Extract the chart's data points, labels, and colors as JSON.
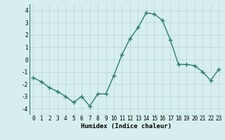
{
  "x": [
    0,
    1,
    2,
    3,
    4,
    5,
    6,
    7,
    8,
    9,
    10,
    11,
    12,
    13,
    14,
    15,
    16,
    17,
    18,
    19,
    20,
    21,
    22,
    23
  ],
  "y": [
    -1.5,
    -1.8,
    -2.3,
    -2.6,
    -3.0,
    -3.5,
    -3.0,
    -3.8,
    -2.8,
    -2.8,
    -1.3,
    0.4,
    1.7,
    2.6,
    3.8,
    3.7,
    3.2,
    1.6,
    -0.4,
    -0.4,
    -0.5,
    -1.0,
    -1.7,
    -0.8
  ],
  "line_color": "#2e7d6e",
  "marker": "+",
  "marker_size": 4,
  "line_width": 1.0,
  "xlabel": "Humidex (Indice chaleur)",
  "ylim": [
    -4.5,
    4.5
  ],
  "yticks": [
    -4,
    -3,
    -2,
    -1,
    0,
    1,
    2,
    3,
    4
  ],
  "xtick_labels": [
    "0",
    "1",
    "2",
    "3",
    "4",
    "5",
    "6",
    "7",
    "8",
    "9",
    "10",
    "11",
    "12",
    "13",
    "14",
    "15",
    "16",
    "17",
    "18",
    "19",
    "20",
    "21",
    "22",
    "23"
  ],
  "background_color": "#d6eeee",
  "grid_color": "#b8d4d4",
  "tick_fontsize": 5.5,
  "xlabel_fontsize": 6.5,
  "xlabel_bold": true
}
